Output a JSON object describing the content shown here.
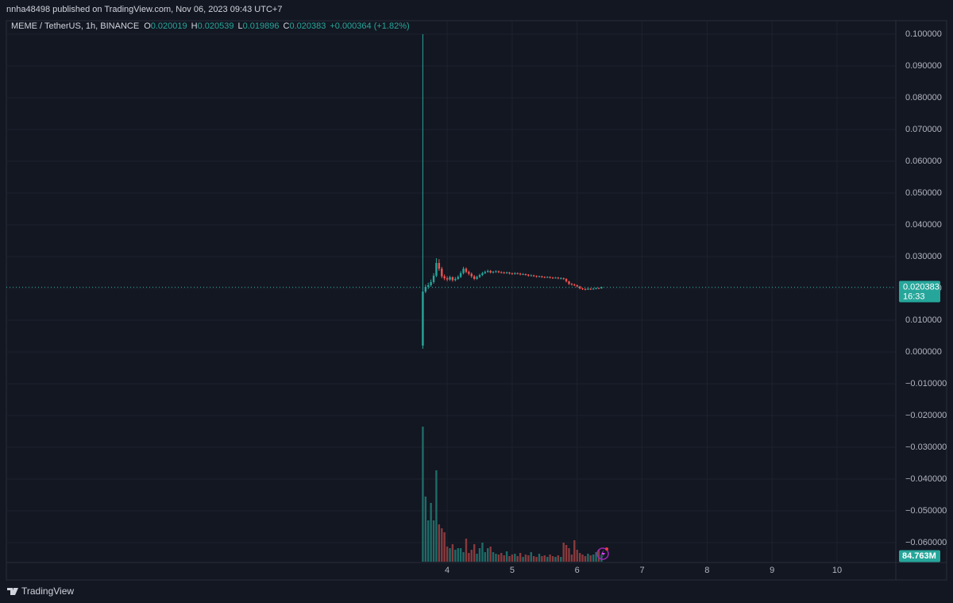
{
  "header": {
    "byline": "nnha48498 published on TradingView.com, Nov 06, 2023 09:43 UTC+7",
    "brand": "TradingView"
  },
  "chart_data": {
    "type": "candlestick",
    "symbol": "MEME / TetherUS, 1h, BINANCE",
    "legend_keys": [
      "O",
      "H",
      "L",
      "C"
    ],
    "change_label": "+0.000364 (+1.82%)",
    "countdown": "16:33",
    "volume_label": "84.763M",
    "up_color": "#26a69a",
    "down_color": "#ef5350",
    "volume_up_color": "#1f6b67",
    "volume_down_color": "#8a3a3d",
    "grid": true,
    "xlim": [
      -2.785,
      10.905
    ],
    "xticks": [
      4,
      5,
      6,
      7,
      8,
      9,
      10
    ],
    "ylim": [
      -0.066,
      0.104
    ],
    "yticks": [
      {
        "value": 0.1,
        "label": "0.100000"
      },
      {
        "value": 0.09,
        "label": "0.090000"
      },
      {
        "value": 0.08,
        "label": "0.080000"
      },
      {
        "value": 0.07,
        "label": "0.070000"
      },
      {
        "value": 0.06,
        "label": "0.060000"
      },
      {
        "value": 0.05,
        "label": "0.050000"
      },
      {
        "value": 0.04,
        "label": "0.040000"
      },
      {
        "value": 0.03,
        "label": "0.030000"
      },
      {
        "value": 0.02,
        "label": "0.020000"
      },
      {
        "value": 0.01,
        "label": "0.010000"
      },
      {
        "value": 0,
        "label": "0.000000"
      },
      {
        "value": -0.01,
        "label": "−0.010000"
      },
      {
        "value": -0.02,
        "label": "−0.020000"
      },
      {
        "value": -0.03,
        "label": "−0.030000"
      },
      {
        "value": -0.04,
        "label": "−0.040000"
      },
      {
        "value": -0.05,
        "label": "−0.050000"
      },
      {
        "value": -0.06,
        "label": "−0.060000"
      }
    ],
    "vlim": [
      0,
      6800
    ],
    "x": [
      3.625,
      3.667,
      3.708,
      3.75,
      3.792,
      3.833,
      3.875,
      3.917,
      3.958,
      4,
      4.042,
      4.083,
      4.125,
      4.167,
      4.208,
      4.25,
      4.292,
      4.333,
      4.375,
      4.417,
      4.458,
      4.5,
      4.542,
      4.583,
      4.625,
      4.667,
      4.708,
      4.75,
      4.792,
      4.833,
      4.875,
      4.917,
      4.958,
      5,
      5.042,
      5.083,
      5.125,
      5.167,
      5.208,
      5.25,
      5.292,
      5.333,
      5.375,
      5.417,
      5.458,
      5.5,
      5.542,
      5.583,
      5.625,
      5.667,
      5.708,
      5.75,
      5.792,
      5.833,
      5.875,
      5.917,
      5.958,
      6,
      6.042,
      6.083,
      6.125,
      6.167,
      6.208,
      6.25,
      6.292,
      6.333,
      6.375
    ],
    "open": [
      0.002,
      0.019,
      0.0205,
      0.021,
      0.022,
      0.024,
      0.028,
      0.0262,
      0.0238,
      0.0232,
      0.0228,
      0.0235,
      0.0226,
      0.023,
      0.0236,
      0.0248,
      0.0262,
      0.0252,
      0.0246,
      0.0238,
      0.023,
      0.0236,
      0.0242,
      0.0248,
      0.0252,
      0.0255,
      0.025,
      0.0252,
      0.0254,
      0.0251,
      0.025,
      0.0249,
      0.025,
      0.0247,
      0.0246,
      0.0248,
      0.0247,
      0.0244,
      0.0245,
      0.0243,
      0.024,
      0.0241,
      0.0239,
      0.0237,
      0.0238,
      0.0236,
      0.0235,
      0.0236,
      0.0234,
      0.0233,
      0.0234,
      0.0232,
      0.0232,
      0.023,
      0.0222,
      0.0214,
      0.0212,
      0.021,
      0.0206,
      0.02,
      0.0198,
      0.0197,
      0.0199,
      0.0198,
      0.0199,
      0.0201,
      0.020019
    ],
    "high": [
      0.1,
      0.0212,
      0.0218,
      0.0228,
      0.0248,
      0.0295,
      0.0292,
      0.0268,
      0.0244,
      0.0238,
      0.024,
      0.0238,
      0.0236,
      0.0241,
      0.0254,
      0.0268,
      0.0266,
      0.0256,
      0.025,
      0.0242,
      0.024,
      0.0246,
      0.0252,
      0.0256,
      0.0259,
      0.0258,
      0.0255,
      0.0257,
      0.0256,
      0.0254,
      0.0253,
      0.0253,
      0.0252,
      0.025,
      0.0251,
      0.025,
      0.0249,
      0.0248,
      0.0247,
      0.0245,
      0.0244,
      0.0243,
      0.0241,
      0.024,
      0.024,
      0.0238,
      0.0238,
      0.0238,
      0.0236,
      0.0236,
      0.0236,
      0.0235,
      0.0234,
      0.0232,
      0.0224,
      0.0217,
      0.0215,
      0.0212,
      0.0208,
      0.0202,
      0.0201,
      0.0202,
      0.0201,
      0.0202,
      0.0203,
      0.0203,
      0.020539
    ],
    "low": [
      0.001,
      0.0185,
      0.0198,
      0.0205,
      0.0215,
      0.0235,
      0.0255,
      0.0232,
      0.0226,
      0.0222,
      0.0224,
      0.0221,
      0.0222,
      0.0227,
      0.0233,
      0.0244,
      0.0248,
      0.0241,
      0.0233,
      0.0226,
      0.0227,
      0.0233,
      0.0239,
      0.0245,
      0.0249,
      0.0247,
      0.0247,
      0.0249,
      0.0248,
      0.0247,
      0.0246,
      0.0246,
      0.0244,
      0.0243,
      0.0243,
      0.0244,
      0.0241,
      0.0242,
      0.024,
      0.0237,
      0.0238,
      0.0236,
      0.0234,
      0.0235,
      0.0233,
      0.0232,
      0.0233,
      0.0231,
      0.023,
      0.0231,
      0.0229,
      0.0229,
      0.0227,
      0.0219,
      0.0211,
      0.0209,
      0.0207,
      0.0203,
      0.0197,
      0.0195,
      0.0194,
      0.0195,
      0.0195,
      0.0196,
      0.0197,
      0.0198,
      0.019896
    ],
    "close": [
      0.019,
      0.0205,
      0.021,
      0.022,
      0.024,
      0.028,
      0.0262,
      0.0238,
      0.0232,
      0.0228,
      0.0235,
      0.0226,
      0.023,
      0.0236,
      0.0248,
      0.0262,
      0.0252,
      0.0246,
      0.0238,
      0.023,
      0.0236,
      0.0242,
      0.0248,
      0.0252,
      0.0255,
      0.025,
      0.0252,
      0.0254,
      0.0251,
      0.025,
      0.0249,
      0.025,
      0.0247,
      0.0246,
      0.0248,
      0.0247,
      0.0244,
      0.0245,
      0.0243,
      0.024,
      0.0241,
      0.0239,
      0.0237,
      0.0238,
      0.0236,
      0.0235,
      0.0236,
      0.0234,
      0.0233,
      0.0234,
      0.0232,
      0.0232,
      0.023,
      0.0222,
      0.0214,
      0.0212,
      0.021,
      0.0206,
      0.02,
      0.0198,
      0.0197,
      0.0199,
      0.0198,
      0.0199,
      0.0201,
      0.020019,
      0.020383
    ],
    "volume": [
      1700,
      820,
      520,
      740,
      520,
      1150,
      470,
      420,
      370,
      190,
      170,
      220,
      150,
      170,
      170,
      120,
      290,
      110,
      150,
      220,
      100,
      170,
      240,
      120,
      170,
      190,
      120,
      100,
      90,
      110,
      80,
      130,
      70,
      90,
      100,
      70,
      110,
      60,
      90,
      80,
      120,
      70,
      60,
      100,
      70,
      80,
      60,
      90,
      70,
      60,
      80,
      60,
      240,
      210,
      170,
      90,
      270,
      150,
      110,
      90,
      70,
      100,
      80,
      90,
      120,
      150,
      84.763
    ]
  }
}
